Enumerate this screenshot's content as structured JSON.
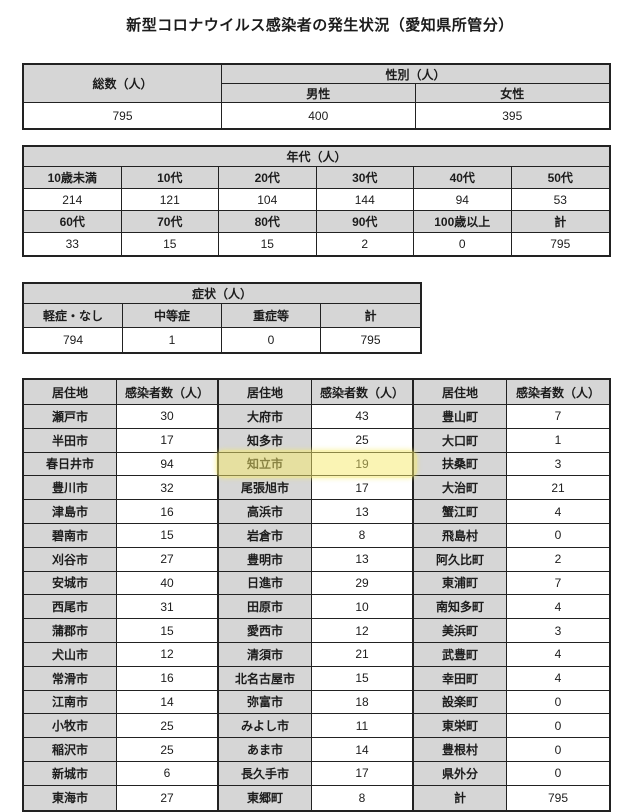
{
  "title": "新型コロナウイルス感染者の発生状況（愛知県所管分）",
  "totals": {
    "total_label": "総数（人）",
    "gender_label": "性別（人）",
    "male_label": "男性",
    "female_label": "女性",
    "total": "795",
    "male": "400",
    "female": "395"
  },
  "age": {
    "label": "年代（人）",
    "row1_headers": [
      "10歳未満",
      "10代",
      "20代",
      "30代",
      "40代",
      "50代"
    ],
    "row1_values": [
      "214",
      "121",
      "104",
      "144",
      "94",
      "53"
    ],
    "row2_headers": [
      "60代",
      "70代",
      "80代",
      "90代",
      "100歳以上",
      "計"
    ],
    "row2_values": [
      "33",
      "15",
      "15",
      "2",
      "0",
      "795"
    ]
  },
  "symptoms": {
    "label": "症状（人）",
    "headers": [
      "軽症・なし",
      "中等症",
      "重症等",
      "計"
    ],
    "values": [
      "794",
      "1",
      "0",
      "795"
    ]
  },
  "residence": {
    "headers": [
      "居住地",
      "感染者数（人）",
      "居住地",
      "感染者数（人）",
      "居住地",
      "感染者数（人）"
    ],
    "rows": [
      [
        "瀬戸市",
        "30",
        "大府市",
        "43",
        "豊山町",
        "7"
      ],
      [
        "半田市",
        "17",
        "知多市",
        "25",
        "大口町",
        "1"
      ],
      [
        "春日井市",
        "94",
        "知立市",
        "19",
        "扶桑町",
        "3"
      ],
      [
        "豊川市",
        "32",
        "尾張旭市",
        "17",
        "大治町",
        "21"
      ],
      [
        "津島市",
        "16",
        "高浜市",
        "13",
        "蟹江町",
        "4"
      ],
      [
        "碧南市",
        "15",
        "岩倉市",
        "8",
        "飛島村",
        "0"
      ],
      [
        "刈谷市",
        "27",
        "豊明市",
        "13",
        "阿久比町",
        "2"
      ],
      [
        "安城市",
        "40",
        "日進市",
        "29",
        "東浦町",
        "7"
      ],
      [
        "西尾市",
        "31",
        "田原市",
        "10",
        "南知多町",
        "4"
      ],
      [
        "蒲郡市",
        "15",
        "愛西市",
        "12",
        "美浜町",
        "3"
      ],
      [
        "犬山市",
        "12",
        "清須市",
        "21",
        "武豊町",
        "4"
      ],
      [
        "常滑市",
        "16",
        "北名古屋市",
        "15",
        "幸田町",
        "4"
      ],
      [
        "江南市",
        "14",
        "弥富市",
        "18",
        "設楽町",
        "0"
      ],
      [
        "小牧市",
        "25",
        "みよし市",
        "11",
        "東栄町",
        "0"
      ],
      [
        "稲沢市",
        "25",
        "あま市",
        "14",
        "豊根村",
        "0"
      ],
      [
        "新城市",
        "6",
        "長久手市",
        "17",
        "県外分",
        "0"
      ],
      [
        "東海市",
        "27",
        "東郷町",
        "8",
        "計",
        "795"
      ]
    ],
    "highlighted_place": "知立市",
    "highlighted_count": "19"
  },
  "colors": {
    "header_bg": "#d6d6d6",
    "border": "#222222",
    "highlight": "#f6ea6a"
  }
}
